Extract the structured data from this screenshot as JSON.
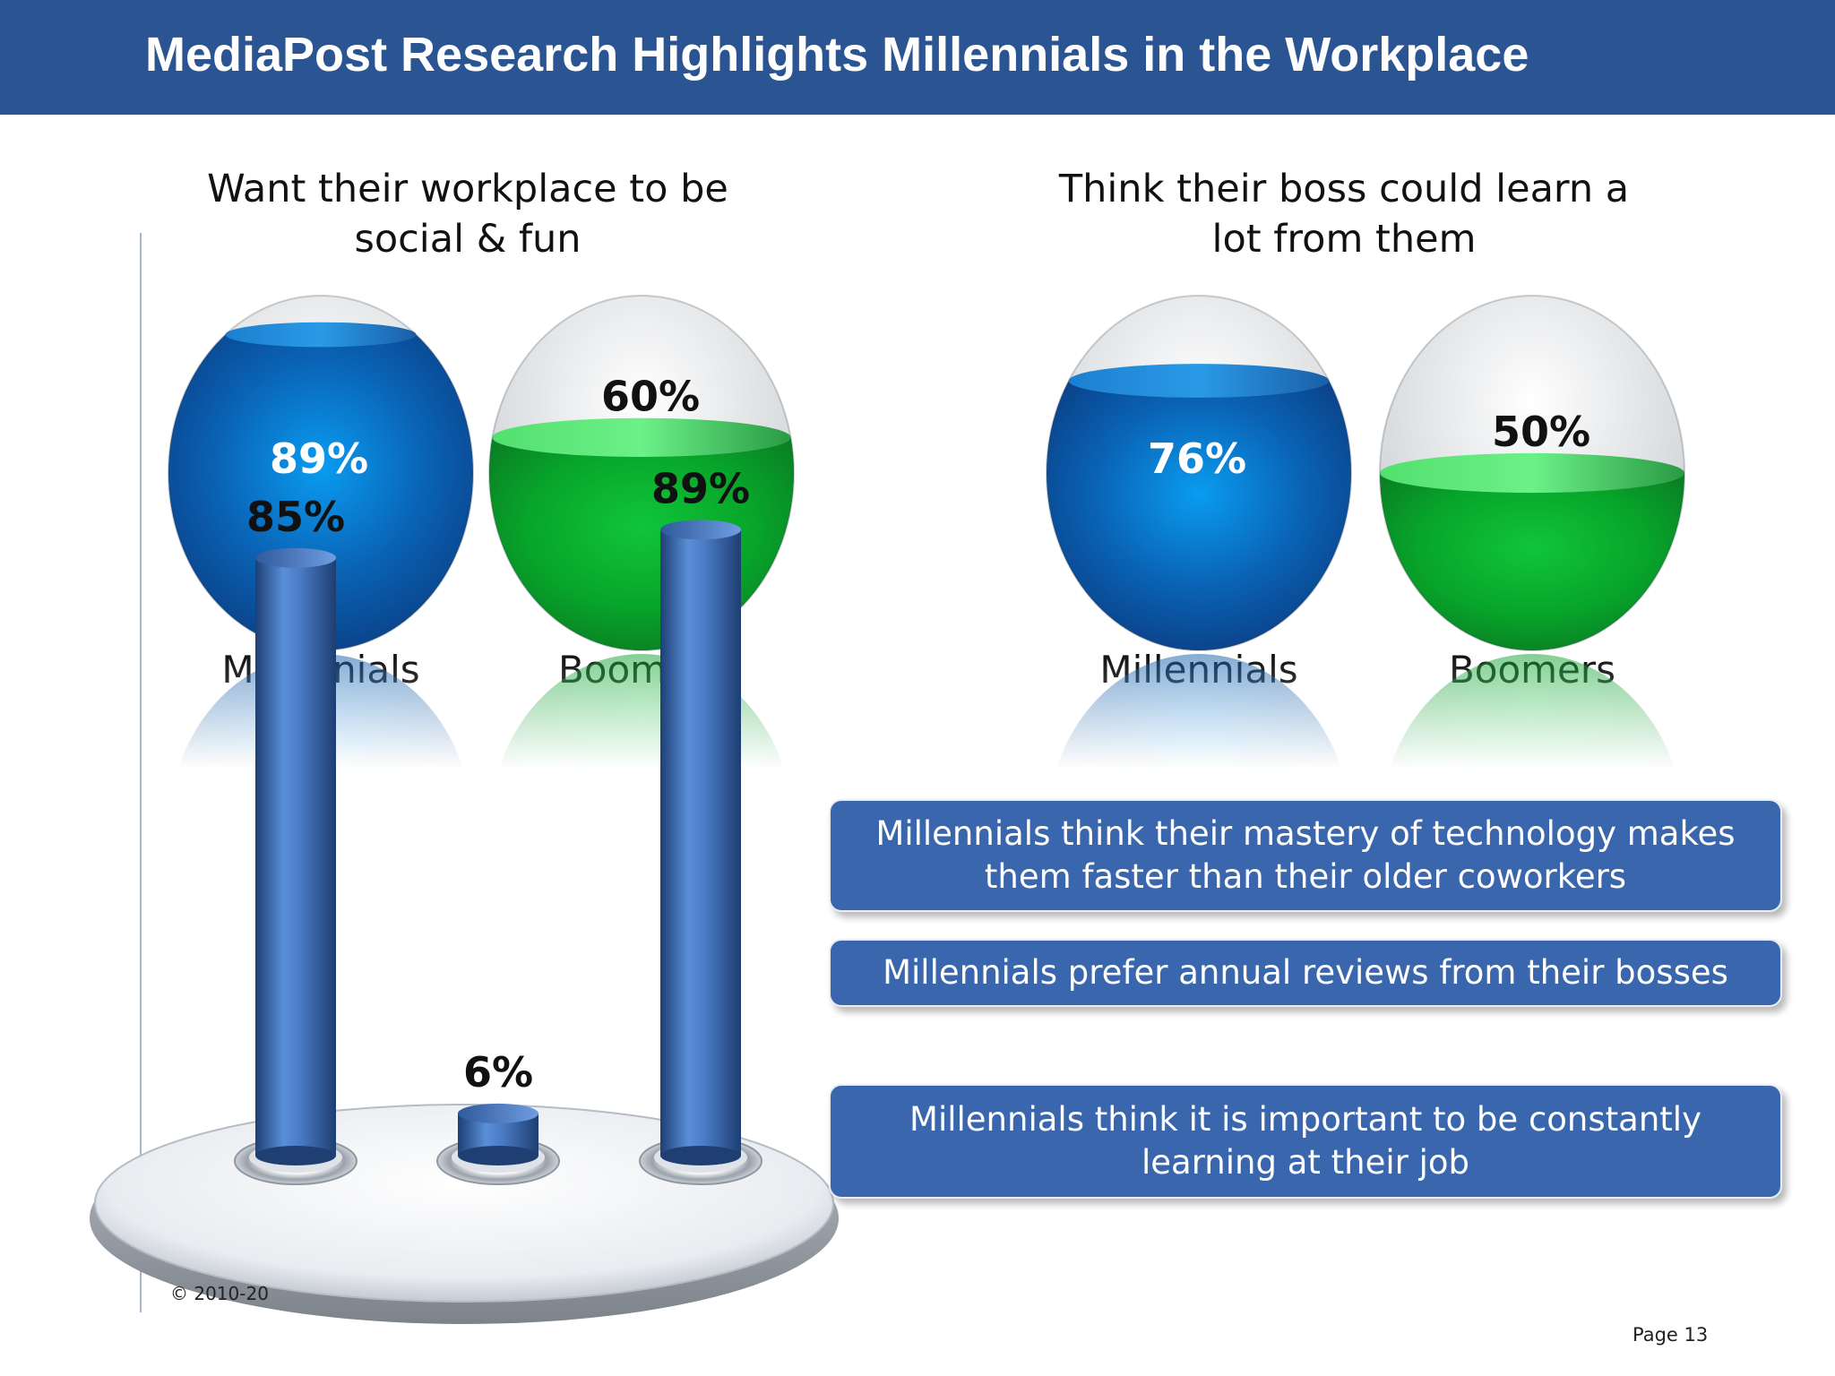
{
  "header": {
    "title": "MediaPost Research Highlights Millennials in the Workplace"
  },
  "chart_data": [
    {
      "type": "bar",
      "style": "3d-globe",
      "title": [
        "Want their workplace to be",
        "social & fun"
      ],
      "categories": [
        "Millennials",
        "Boomers"
      ],
      "values": [
        89,
        60
      ],
      "value_labels": [
        "89%",
        "60%"
      ],
      "colors": [
        "#1e73c8",
        "#22b53a"
      ],
      "ylim": [
        0,
        100
      ]
    },
    {
      "type": "bar",
      "style": "3d-globe",
      "title": [
        "Think their boss could learn a",
        "lot from them"
      ],
      "categories": [
        "Millennials",
        "Boomers"
      ],
      "values": [
        76,
        50
      ],
      "value_labels": [
        "76%",
        "50%"
      ],
      "colors": [
        "#1e73c8",
        "#22b53a"
      ],
      "ylim": [
        0,
        100
      ]
    },
    {
      "type": "bar",
      "style": "3d-cylinder",
      "values": [
        85,
        6,
        89
      ],
      "value_labels": [
        "85%",
        "6%",
        "89%"
      ],
      "color": "#3d6bb3",
      "ylim": [
        0,
        100
      ]
    }
  ],
  "callouts": [
    [
      "Millennials think their mastery of technology makes",
      "them faster than their older coworkers"
    ],
    [
      "Millennials prefer annual reviews from their bosses"
    ],
    [
      "Millennials think it is important to be constantly",
      "learning at their job"
    ]
  ],
  "footer": {
    "copyright": "© 2010-20",
    "page": "Page 13"
  }
}
